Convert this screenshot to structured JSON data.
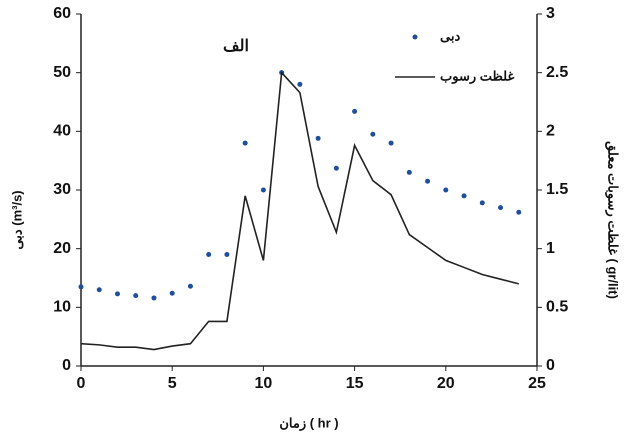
{
  "chart_data": {
    "type": "scatter-line",
    "title": "الف",
    "x_label": "زمان ( hr )",
    "y_label": "دبی (m³/s)",
    "y2_label": "غلظت رسوبات معلق ( gr/lit)",
    "x": [
      0,
      1,
      2,
      3,
      4,
      5,
      6,
      7,
      8,
      9,
      10,
      11,
      12,
      13,
      14,
      15,
      16,
      17,
      18,
      19,
      20,
      21,
      22,
      23,
      24
    ],
    "series": [
      {
        "name": "دبی",
        "type": "scatter",
        "color": "#1f4e9a",
        "values": [
          13.5,
          13,
          12.3,
          12,
          11.6,
          12.4,
          13.6,
          19,
          19,
          38,
          30,
          50,
          48,
          38.8,
          33.7,
          43.4,
          39.5,
          38,
          33,
          31.5,
          30,
          29,
          27.8,
          27,
          26.2
        ]
      },
      {
        "name": "غلظت رسوب",
        "type": "line",
        "color": "#222222",
        "axis": "y2",
        "values": [
          0.19,
          0.18,
          0.16,
          0.16,
          0.14,
          0.17,
          0.19,
          0.38,
          0.38,
          1.45,
          0.9,
          2.5,
          2.33,
          1.53,
          1.14,
          1.88,
          1.58,
          1.46,
          1.12,
          1.01,
          0.9,
          0.84,
          0.78,
          0.74,
          0.7
        ]
      }
    ],
    "xlim": [
      0,
      25
    ],
    "xticks": [
      0,
      5,
      10,
      15,
      20,
      25
    ],
    "ylim": [
      0,
      60
    ],
    "yticks": [
      0,
      10,
      20,
      30,
      40,
      50,
      60
    ],
    "y2lim": [
      0,
      3
    ],
    "y2ticks": [
      0,
      0.5,
      1,
      1.5,
      2,
      2.5,
      3
    ],
    "grid": false,
    "legend": "top-right"
  }
}
